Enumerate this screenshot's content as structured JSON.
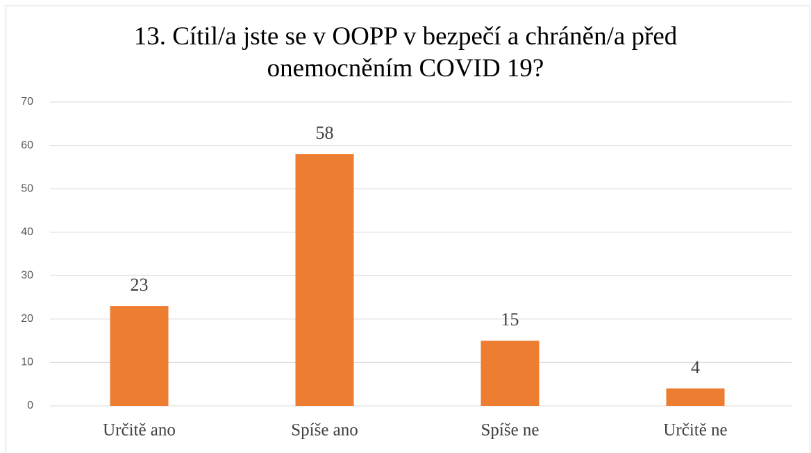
{
  "chart_data": {
    "type": "bar",
    "title": "13. Cítil/a jste se v OOPP v bezpečí a chráněn/a před onemocněním COVID 19?",
    "categories": [
      "Určitě ano",
      "Spíše ano",
      "Spíše ne",
      "Určitě ne"
    ],
    "values": [
      23,
      58,
      15,
      4
    ],
    "color": "#ed7d31",
    "ylim": [
      0,
      70
    ],
    "yticks": [
      0,
      10,
      20,
      30,
      40,
      50,
      60,
      70
    ],
    "grid": true,
    "data_labels": true
  }
}
